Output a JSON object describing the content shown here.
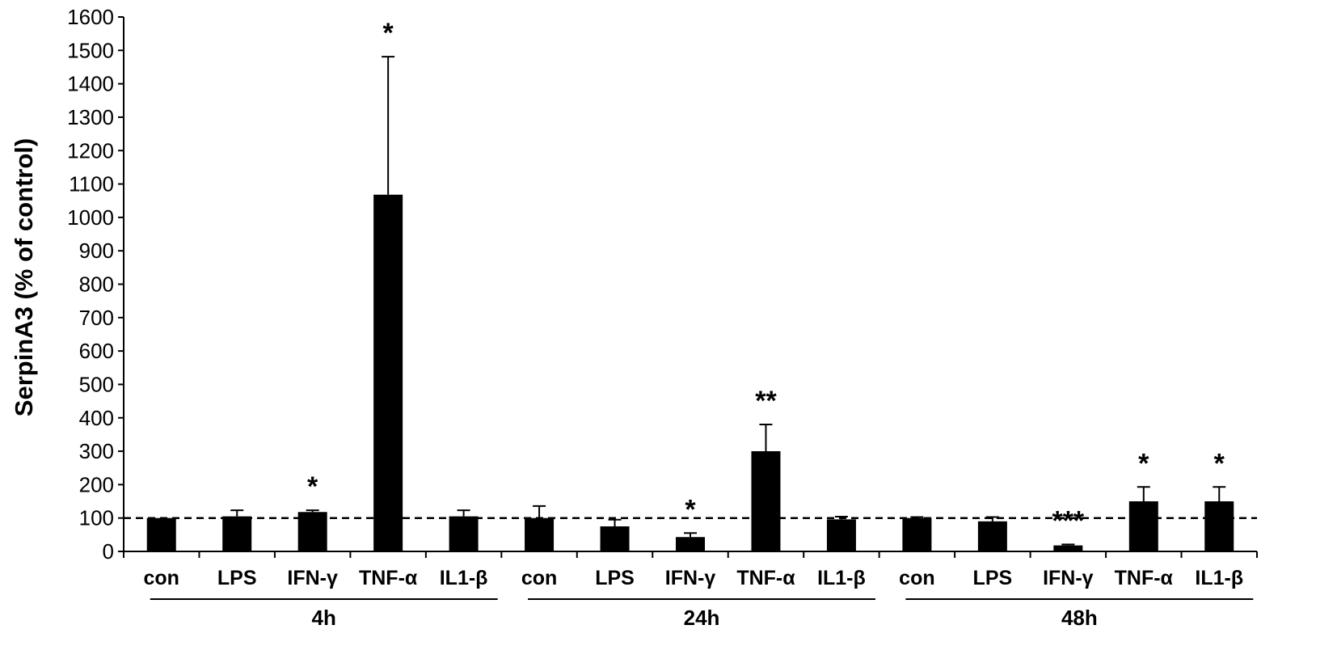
{
  "chart_data": {
    "type": "bar",
    "title": "",
    "ylabel": "SerpinA3 (% of control)",
    "xlabel": "",
    "ylim": [
      0,
      1600
    ],
    "yticks": [
      0,
      100,
      200,
      300,
      400,
      500,
      600,
      700,
      800,
      900,
      1000,
      1100,
      1200,
      1300,
      1400,
      1500,
      1600
    ],
    "grid": false,
    "reference_line": {
      "value": 100,
      "style": "dashed"
    },
    "bar_color": "#000000",
    "groups": [
      {
        "label": "4h",
        "bars": [
          {
            "category": "con",
            "value": 100,
            "error": 0,
            "sig": ""
          },
          {
            "category": "LPS",
            "value": 105,
            "error": 18,
            "sig": ""
          },
          {
            "category": "IFN-γ",
            "value": 118,
            "error": 5,
            "sig": "*"
          },
          {
            "category": "TNF-α",
            "value": 1068,
            "error": 413,
            "sig": "*"
          },
          {
            "category": "IL1-β",
            "value": 105,
            "error": 18,
            "sig": ""
          }
        ]
      },
      {
        "label": "24h",
        "bars": [
          {
            "category": "con",
            "value": 100,
            "error": 36,
            "sig": ""
          },
          {
            "category": "LPS",
            "value": 75,
            "error": 20,
            "sig": ""
          },
          {
            "category": "IFN-γ",
            "value": 43,
            "error": 12,
            "sig": "*"
          },
          {
            "category": "TNF-α",
            "value": 300,
            "error": 80,
            "sig": "**"
          },
          {
            "category": "IL1-β",
            "value": 96,
            "error": 8,
            "sig": ""
          }
        ]
      },
      {
        "label": "48h",
        "bars": [
          {
            "category": "con",
            "value": 100,
            "error": 3,
            "sig": ""
          },
          {
            "category": "LPS",
            "value": 90,
            "error": 13,
            "sig": ""
          },
          {
            "category": "IFN-γ",
            "value": 18,
            "error": 3,
            "sig": "***"
          },
          {
            "category": "TNF-α",
            "value": 150,
            "error": 43,
            "sig": "*"
          },
          {
            "category": "IL1-β",
            "value": 150,
            "error": 43,
            "sig": "*"
          }
        ]
      }
    ]
  }
}
